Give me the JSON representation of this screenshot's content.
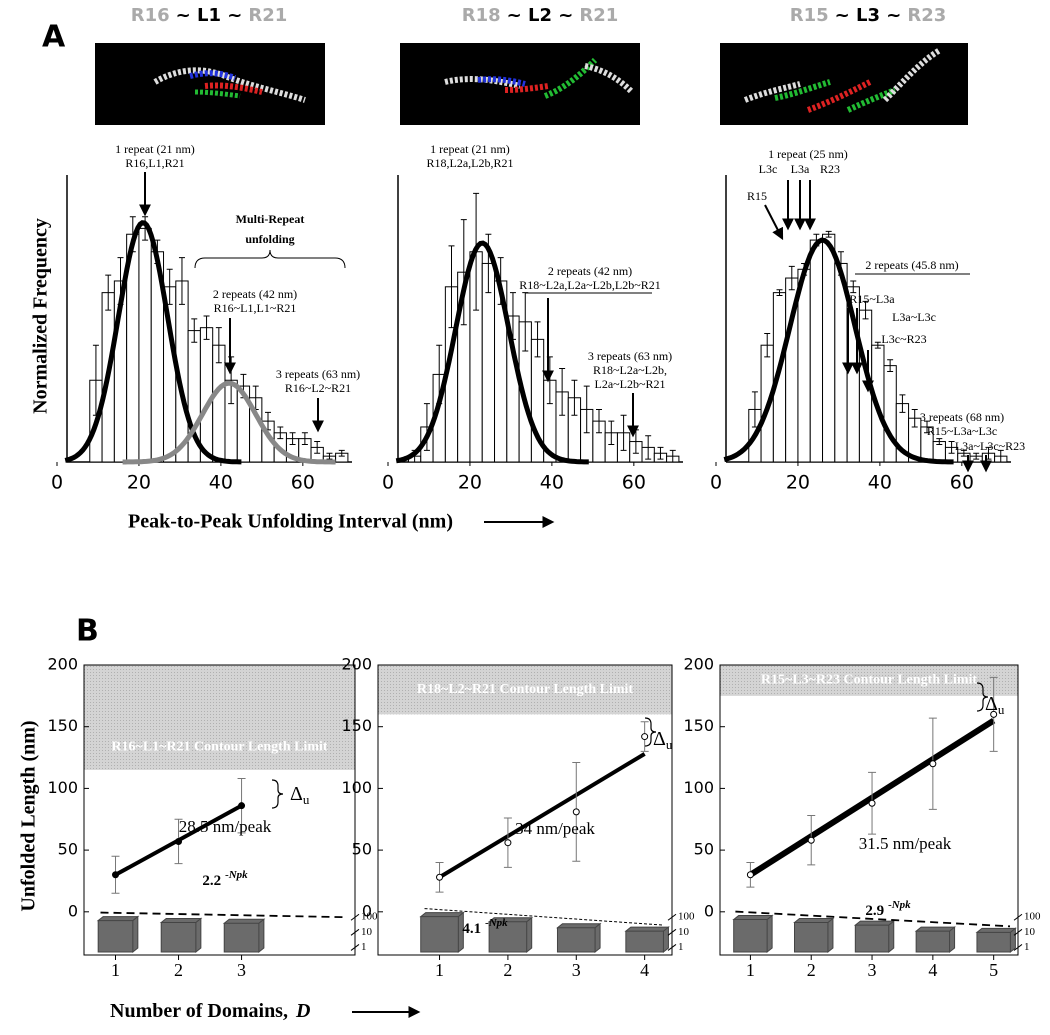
{
  "figure": {
    "a_label": "A",
    "b_label": "B",
    "a_xlabel": "Peak-to-Peak Unfolding Interval (nm)",
    "a_ylabel": "Normalized Frequency",
    "b_xlabel": "Number of Domains,",
    "b_xlabel_var": "D",
    "b_ylabel": "Unfolded Length (nm)"
  },
  "chart_data": [
    {
      "type": "histogram",
      "title_parts": [
        "R16",
        "~ L1 ~",
        "R21"
      ],
      "bins": [
        8,
        11,
        14,
        17,
        20,
        23,
        26,
        29,
        32,
        35,
        38,
        41,
        44,
        47,
        50,
        53,
        56,
        59,
        62,
        65,
        68,
        71
      ],
      "counts": [
        28,
        58,
        62,
        78,
        80,
        72,
        60,
        62,
        45,
        46,
        40,
        28,
        26,
        22,
        14,
        10,
        8,
        8,
        5,
        2,
        3
      ],
      "errors": [
        12,
        6,
        8,
        6,
        4,
        4,
        6,
        8,
        4,
        4,
        6,
        8,
        4,
        4,
        3,
        2,
        2,
        2,
        2,
        1,
        1
      ],
      "xlim": [
        0,
        72
      ],
      "xticks": [
        0,
        20,
        40,
        60
      ],
      "ylim": [
        0,
        100
      ],
      "color": "#ffffff",
      "curves": [
        {
          "color": "#000000",
          "mean": 21,
          "sd": 6,
          "peak": 82
        },
        {
          "color": "#888888",
          "mean": 42,
          "sd": 6.5,
          "peak": 27
        }
      ],
      "annotations": [
        "1 repeat (21  nm)",
        "R16,L1,R21",
        "Multi-Repeat",
        "unfolding",
        "2 repeats (42  nm)",
        "R16~L1,L1~R21",
        "3 repeats (63  nm)",
        "R16~L2~R21"
      ]
    },
    {
      "type": "histogram",
      "title_parts": [
        "R18",
        "~ L2 ~",
        "R21"
      ],
      "bins": [
        5,
        8,
        11,
        14,
        17,
        20,
        23,
        26,
        29,
        32,
        35,
        38,
        41,
        44,
        47,
        50,
        53,
        56,
        59,
        62,
        65,
        68,
        71
      ],
      "counts": [
        2,
        12,
        30,
        60,
        65,
        72,
        68,
        62,
        50,
        48,
        42,
        28,
        24,
        22,
        18,
        14,
        10,
        10,
        7,
        5,
        3,
        2
      ],
      "errors": [
        2,
        8,
        10,
        14,
        18,
        20,
        10,
        8,
        8,
        10,
        6,
        8,
        8,
        6,
        8,
        4,
        4,
        6,
        4,
        4,
        2,
        2
      ],
      "xlim": [
        0,
        72
      ],
      "xticks": [
        0,
        20,
        40,
        60
      ],
      "ylim": [
        0,
        100
      ],
      "color": "#ffffff",
      "curves": [
        {
          "color": "#000000",
          "mean": 23,
          "sd": 6.5,
          "peak": 75
        }
      ],
      "annotations": [
        "1 repeat (21  nm)",
        "R18,L2a,L2b,R21",
        "2 repeats (42 nm)",
        "R18~L2a,L2a~L2b,L2b~R21",
        "3 repeats (63 nm)",
        "R18~L2a~L2b,",
        "L2a~L2b~R21"
      ]
    },
    {
      "type": "histogram",
      "title_parts": [
        "R15",
        "~ L3 ~",
        "R23"
      ],
      "bins": [
        8,
        11,
        14,
        17,
        20,
        23,
        26,
        29,
        32,
        35,
        38,
        41,
        44,
        47,
        50,
        53,
        56,
        59,
        62,
        65,
        68,
        71
      ],
      "counts": [
        18,
        40,
        58,
        63,
        66,
        76,
        78,
        68,
        60,
        52,
        40,
        33,
        20,
        15,
        12,
        7,
        5,
        3,
        2,
        3,
        2
      ],
      "errors": [
        6,
        4,
        1,
        4,
        2,
        2,
        1,
        4,
        2,
        3,
        1,
        2,
        3,
        3,
        2,
        1,
        2,
        1,
        1,
        2,
        2
      ],
      "xlim": [
        0,
        72
      ],
      "xticks": [
        0,
        20,
        40,
        60
      ],
      "ylim": [
        0,
        100
      ],
      "color": "#ffffff",
      "curves": [
        {
          "color": "#000000",
          "mean": 26,
          "sd": 8,
          "peak": 76
        }
      ],
      "annotations": [
        "1 repeat (25  nm)",
        "L3c",
        "L3a",
        "R23",
        "R15",
        "2 repeats (45.8  nm)",
        "R15~L3a",
        "L3a~L3c",
        "L3c~R23",
        "3 repeats (68 nm)",
        "R15~L3a~L3c",
        "L3a~L3c~R23"
      ]
    },
    {
      "type": "line",
      "x": [
        1,
        2,
        3
      ],
      "values": [
        30,
        57,
        86
      ],
      "errors": [
        15,
        18,
        22
      ],
      "xlim": [
        0.5,
        4.8
      ],
      "xticks": [
        1,
        2,
        3
      ],
      "ylim": [
        -35,
        200
      ],
      "yticks": [
        0,
        50,
        100,
        150,
        200
      ],
      "fit": {
        "x": [
          1,
          3
        ],
        "values": [
          30,
          86
        ]
      },
      "limit": [
        115,
        200
      ],
      "limit_label": "R16~L1~R21 Contour Length Limit",
      "slope_label": "28.5 nm/peak",
      "decay_label": "2.2",
      "decay_exponent": "-Npk",
      "delta_label": "Δ",
      "delta_sub": "u",
      "inset": {
        "log": true,
        "ylim": [
          0.5,
          300
        ],
        "yticks": [
          100,
          10,
          1
        ],
        "values": [
          60,
          45,
          40
        ]
      }
    },
    {
      "type": "line",
      "x": [
        1,
        2,
        3,
        4
      ],
      "values": [
        28,
        56,
        81,
        142
      ],
      "errors": [
        12,
        20,
        40,
        12
      ],
      "xlim": [
        0.1,
        4.4
      ],
      "xticks": [
        1,
        2,
        3,
        4
      ],
      "ylim": [
        -35,
        200
      ],
      "yticks": [
        0,
        50,
        100,
        150,
        200
      ],
      "fit": {
        "x": [
          1,
          4
        ],
        "values": [
          28,
          128
        ]
      },
      "limit": [
        160,
        200
      ],
      "limit_label": "R18~L2~R21 Contour Length Limit",
      "slope_label": "34 nm/peak",
      "decay_label": "4.1",
      "decay_exponent": "-Npk",
      "delta_label": "Δ",
      "delta_sub": "u",
      "inset": {
        "log": true,
        "ylim": [
          0.5,
          300
        ],
        "yticks": [
          100,
          10,
          1
        ],
        "values": [
          110,
          50,
          20,
          12
        ]
      }
    },
    {
      "type": "line",
      "x": [
        1,
        2,
        3,
        4,
        5
      ],
      "values": [
        30,
        58,
        88,
        120,
        160
      ],
      "errors": [
        10,
        20,
        25,
        37,
        30
      ],
      "xlim": [
        0.5,
        5.4
      ],
      "xticks": [
        1,
        2,
        3,
        4,
        5
      ],
      "ylim": [
        -35,
        200
      ],
      "yticks": [
        0,
        50,
        100,
        150,
        200
      ],
      "fit": {
        "x": [
          1,
          5
        ],
        "values": [
          30,
          155
        ]
      },
      "limit": [
        175,
        200
      ],
      "limit_label": "R15~L3~R23 Contour Length Limit",
      "slope_label": "31.5 nm/peak",
      "decay_label": "2.9",
      "decay_exponent": "-Npk",
      "delta_label": "Δ",
      "delta_sub": "u",
      "inset": {
        "log": true,
        "ylim": [
          0.5,
          300
        ],
        "yticks": [
          100,
          10,
          1
        ],
        "values": [
          70,
          45,
          30,
          12,
          10
        ]
      }
    }
  ]
}
